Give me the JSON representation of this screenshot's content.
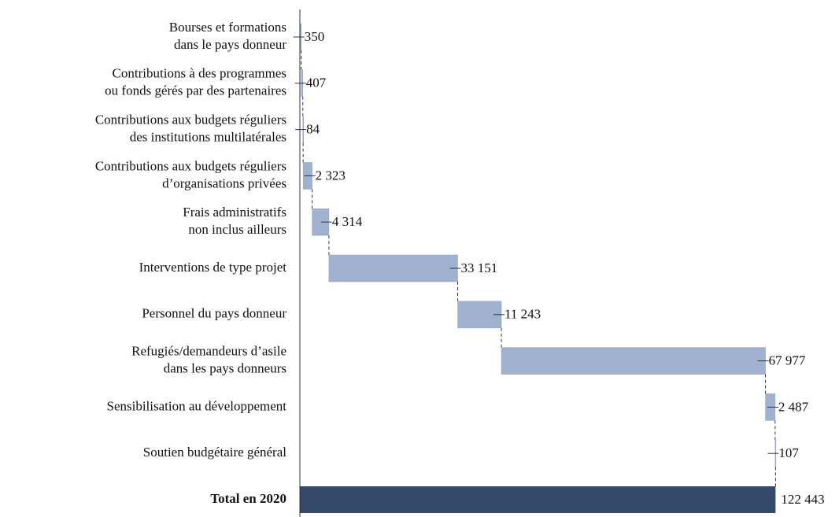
{
  "chart_data": {
    "type": "waterfall",
    "categories": [
      [
        "Bourses et formations",
        "dans le pays donneur"
      ],
      [
        "Contributions à des programmes",
        "ou fonds gérés par des partenaires"
      ],
      [
        "Contributions aux budgets réguliers",
        "des institutions multilatérales"
      ],
      [
        "Contributions aux budgets réguliers",
        "d’organisations privées"
      ],
      [
        "Frais administratifs",
        "non inclus ailleurs"
      ],
      [
        "Interventions de type projet"
      ],
      [
        "Personnel du pays donneur"
      ],
      [
        "Refugiés/demandeurs d’asile",
        "dans les pays donneurs"
      ],
      [
        "Sensibilisation au développement"
      ],
      [
        "Soutien budgétaire général"
      ]
    ],
    "values": [
      350,
      407,
      84,
      2323,
      4314,
      33151,
      11243,
      67977,
      2487,
      107
    ],
    "value_labels": [
      "350",
      "407",
      "84",
      "2 323",
      "4 314",
      "33 151",
      "11 243",
      "67 977",
      "2 487",
      "107"
    ],
    "color": "#a0b2cf",
    "total": {
      "label": "Total en 2020",
      "value": 122443,
      "value_label": "122 443",
      "color": "#354a6b"
    },
    "xlim": [
      0,
      125000
    ]
  }
}
